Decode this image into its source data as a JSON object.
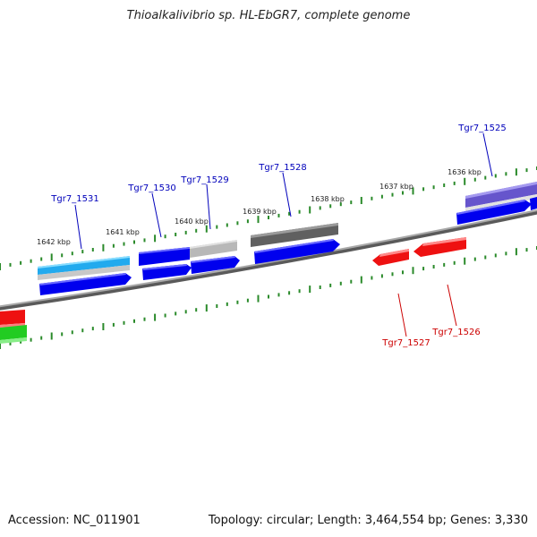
{
  "title": "Thioalkalivibrio sp. HL-EbGR7, complete genome",
  "footer": {
    "accession": "Accession: NC_011901",
    "topology": "Topology: circular; Length: 3,464,554 bp; Genes: 3,330"
  },
  "kbp_labels": [
    "1642 kbp",
    "1641 kbp",
    "1640 kbp",
    "1639 kbp",
    "1638 kbp",
    "1637 kbp",
    "1636 kbp"
  ],
  "gene_labels": {
    "blue": [
      "Tgr7_1531",
      "Tgr7_1530",
      "Tgr7_1529",
      "Tgr7_1528",
      "Tgr7_1525"
    ],
    "red": [
      "Tgr7_1527",
      "Tgr7_1526"
    ]
  },
  "colors": {
    "backbone": "#808080",
    "tick": "#2a8a2a",
    "cds_blue": "#0000ee",
    "cds_red": "#ee1111",
    "cds_green": "#22cc22",
    "cyan_feature": "#22aaee",
    "gray_feature": "#b8b8b8",
    "dark_feature": "#606060",
    "purple_feature": "#6655cc",
    "label_blue": "#0000bb",
    "label_red": "#cc0000"
  }
}
